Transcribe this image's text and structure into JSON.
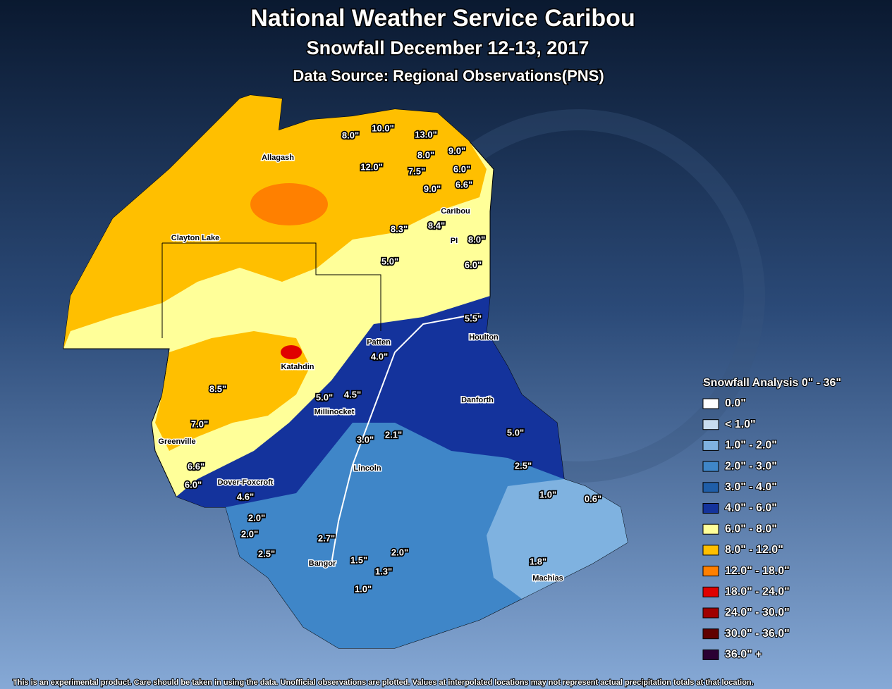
{
  "header": {
    "title": "National Weather Service Caribou",
    "subtitle": "Snowfall December 12-13, 2017",
    "source": "Data Source: Regional Observations(PNS)"
  },
  "towns": [
    "Allagash",
    "Clayton Lake",
    "Caribou",
    "PI",
    "Patten",
    "Houlton",
    "Katahdin",
    "Millinocket",
    "Danforth",
    "Greenville",
    "Lincoln",
    "Dover-Foxcroft",
    "Bangor",
    "Machias"
  ],
  "observations": [
    "8.0\"",
    "10.0\"",
    "13.0\"",
    "9.0\"",
    "8.0\"",
    "6.0\"",
    "12.0\"",
    "7.5\"",
    "9.0\"",
    "6.6\"",
    "8.3\"",
    "8.4\"",
    "8.0\"",
    "5.0\"",
    "6.0\"",
    "5.5\"",
    "4.0\"",
    "8.5\"",
    "5.0\"",
    "4.5\"",
    "7.0\"",
    "5.0\"",
    "3.0\"",
    "2.1\"",
    "2.5\"",
    "6.6\"",
    "6.0\"",
    "1.0\"",
    "0.6\"",
    "4.6\"",
    "2.0\"",
    "2.0\"",
    "2.7\"",
    "2.5\"",
    "2.0\"",
    "1.5\"",
    "1.3\"",
    "1.8\"",
    "1.0\""
  ],
  "legend": {
    "title": "Snowfall Analysis 0\" - 36\"",
    "items": [
      {
        "label": "0.0\"",
        "color": "#ffffff"
      },
      {
        "label": "< 1.0\"",
        "color": "#c8dcef"
      },
      {
        "label": "1.0\" - 2.0\"",
        "color": "#7fb2e0"
      },
      {
        "label": "2.0\" - 3.0\"",
        "color": "#3f86c8"
      },
      {
        "label": "3.0\" - 4.0\"",
        "color": "#1f5ea8"
      },
      {
        "label": "4.0\" - 6.0\"",
        "color": "#14339c"
      },
      {
        "label": "6.0\" - 8.0\"",
        "color": "#ffff99"
      },
      {
        "label": "8.0\" - 12.0\"",
        "color": "#ffbf00"
      },
      {
        "label": "12.0\" - 18.0\"",
        "color": "#ff8000"
      },
      {
        "label": "18.0\" - 24.0\"",
        "color": "#e00000"
      },
      {
        "label": "24.0\" - 30.0\"",
        "color": "#a00000"
      },
      {
        "label": "30.0\" - 36.0\"",
        "color": "#600000"
      },
      {
        "label": "36.0\" +",
        "color": "#2b0033"
      }
    ]
  },
  "footer": "This is an experimental product. Care should be taken in using the data. Unofficial observations are plotted. Values at interpolated locations may not represent actual precipitation totals at that location."
}
